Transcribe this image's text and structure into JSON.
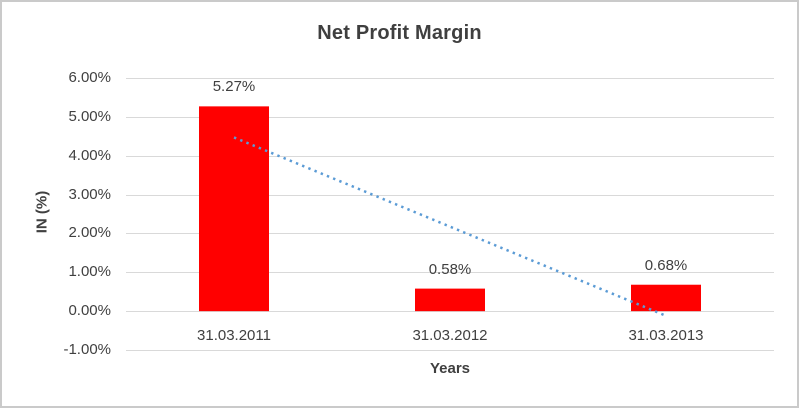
{
  "chart_data": {
    "type": "bar",
    "title": "Net Profit Margin",
    "xlabel": "Years",
    "ylabel": "IN (%)",
    "categories": [
      "31.03.2011",
      "31.03.2012",
      "31.03.2013"
    ],
    "values": [
      5.27,
      0.58,
      0.68
    ],
    "data_labels": [
      "5.27%",
      "0.58%",
      "0.68%"
    ],
    "ylim": [
      -1,
      6
    ],
    "yticks": {
      "values": [
        6,
        5,
        4,
        3,
        2,
        1,
        0,
        -1
      ],
      "labels": [
        "6.00%",
        "5.00%",
        "4.00%",
        "3.00%",
        "2.00%",
        "1.00%",
        "0.00%",
        "-1.00%"
      ]
    },
    "grid": true,
    "legend": "none",
    "trendline": {
      "type": "linear",
      "style": "dotted",
      "color": "#5B9BD5",
      "points": [
        {
          "x": 1,
          "y": 4.47
        },
        {
          "x": 3,
          "y": -0.12
        }
      ]
    },
    "colors": {
      "bar": "#FF0000",
      "gridline": "#D9D9D9",
      "axis_text": "#404040",
      "title_text": "#3F3F3F",
      "frame_border": "#CACACA",
      "background": "#FFFFFF"
    }
  }
}
